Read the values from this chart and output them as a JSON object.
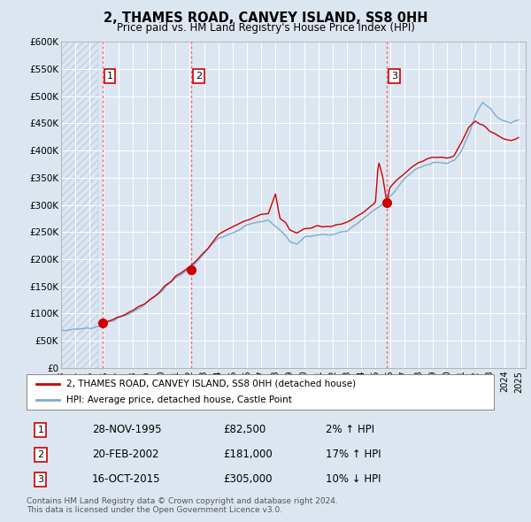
{
  "title": "2, THAMES ROAD, CANVEY ISLAND, SS8 0HH",
  "subtitle": "Price paid vs. HM Land Registry's House Price Index (HPI)",
  "background_color": "#dce6f1",
  "hatch_color": "#c0cfe0",
  "grid_color": "#ffffff",
  "ylim": [
    0,
    600000
  ],
  "yticks": [
    0,
    50000,
    100000,
    150000,
    200000,
    250000,
    300000,
    350000,
    400000,
    450000,
    500000,
    550000,
    600000
  ],
  "ytick_labels": [
    "£0",
    "£50K",
    "£100K",
    "£150K",
    "£200K",
    "£250K",
    "£300K",
    "£350K",
    "£400K",
    "£450K",
    "£500K",
    "£550K",
    "£600K"
  ],
  "xlim_start": 1993.0,
  "xlim_end": 2025.5,
  "purchase_dates": [
    1995.91,
    2002.13,
    2015.79
  ],
  "purchase_prices": [
    82500,
    181000,
    305000
  ],
  "purchase_labels": [
    "1",
    "2",
    "3"
  ],
  "vline_color": "#ff6666",
  "point_color": "#cc0000",
  "point_size": 7,
  "red_line_color": "#cc0000",
  "blue_line_color": "#7aadcf",
  "legend_label_red": "2, THAMES ROAD, CANVEY ISLAND, SS8 0HH (detached house)",
  "legend_label_blue": "HPI: Average price, detached house, Castle Point",
  "table_rows": [
    {
      "num": "1",
      "date": "28-NOV-1995",
      "price": "£82,500",
      "hpi": "2% ↑ HPI"
    },
    {
      "num": "2",
      "date": "20-FEB-2002",
      "price": "£181,000",
      "hpi": "17% ↑ HPI"
    },
    {
      "num": "3",
      "date": "16-OCT-2015",
      "price": "£305,000",
      "hpi": "10% ↓ HPI"
    }
  ],
  "footer_text": "Contains HM Land Registry data © Crown copyright and database right 2024.\nThis data is licensed under the Open Government Licence v3.0."
}
